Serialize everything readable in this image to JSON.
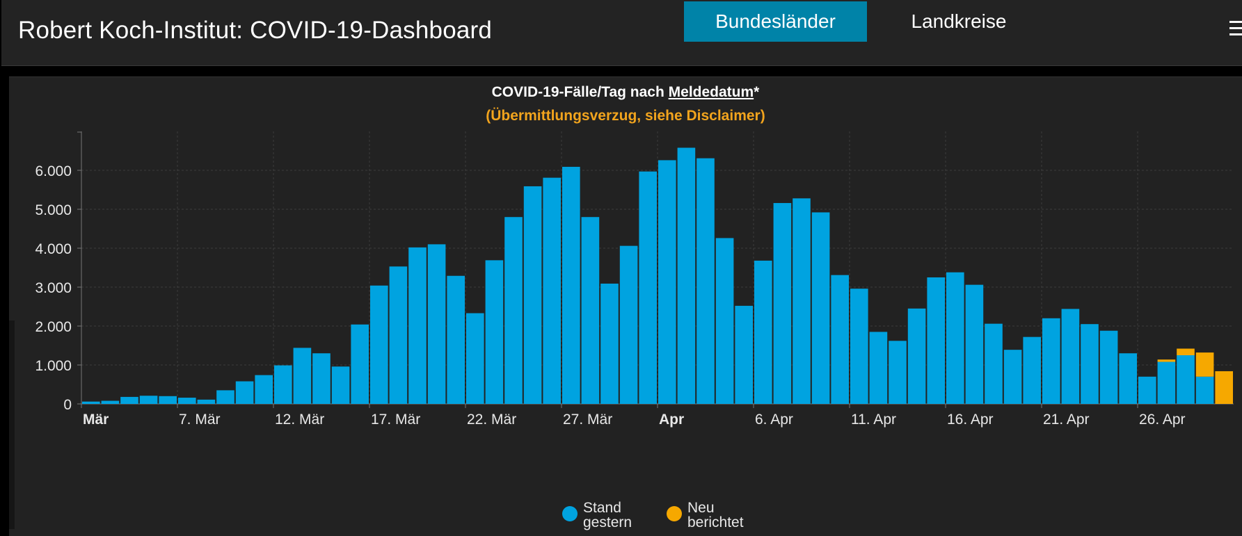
{
  "header": {
    "title": "Robert Koch-Institut: COVID-19-Dashboard",
    "tabs": [
      {
        "label": "Bundesländer",
        "active": true
      },
      {
        "label": "Landkreise",
        "active": false
      }
    ],
    "menu_icon": "hamburger-menu-icon"
  },
  "colors": {
    "stand": "#00a3e0",
    "neu": "#f6a800",
    "accent": "#0083a8",
    "subtitle": "#f2a41d"
  },
  "chart_data": {
    "type": "bar",
    "stacked": true,
    "title_pre": "COVID-19-Fälle/Tag nach ",
    "title_link": "Meldedatum",
    "title_post": "*",
    "subtitle": "(Übermittlungsverzug, siehe Disclaimer)",
    "ylim": [
      0,
      7000
    ],
    "yticks": [
      0,
      1000,
      2000,
      3000,
      4000,
      5000,
      6000
    ],
    "ytick_labels": [
      "0",
      "1.000",
      "2.000",
      "3.000",
      "4.000",
      "5.000",
      "6.000"
    ],
    "xtick_labels": [
      {
        "index": 0,
        "label": "Mär",
        "bold": true
      },
      {
        "index": 5,
        "label": "7. Mär",
        "bold": false
      },
      {
        "index": 10,
        "label": "12. Mär",
        "bold": false
      },
      {
        "index": 15,
        "label": "17. Mär",
        "bold": false
      },
      {
        "index": 20,
        "label": "22. Mär",
        "bold": false
      },
      {
        "index": 25,
        "label": "27. Mär",
        "bold": false
      },
      {
        "index": 30,
        "label": "Apr",
        "bold": true
      },
      {
        "index": 35,
        "label": "6. Apr",
        "bold": false
      },
      {
        "index": 40,
        "label": "11. Apr",
        "bold": false
      },
      {
        "index": 45,
        "label": "16. Apr",
        "bold": false
      },
      {
        "index": 50,
        "label": "21. Apr",
        "bold": false
      },
      {
        "index": 55,
        "label": "26. Apr",
        "bold": false
      }
    ],
    "categories": [
      "2020-03-02",
      "2020-03-03",
      "2020-03-04",
      "2020-03-05",
      "2020-03-06",
      "2020-03-07",
      "2020-03-08",
      "2020-03-09",
      "2020-03-10",
      "2020-03-11",
      "2020-03-12",
      "2020-03-13",
      "2020-03-14",
      "2020-03-15",
      "2020-03-16",
      "2020-03-17",
      "2020-03-18",
      "2020-03-19",
      "2020-03-20",
      "2020-03-21",
      "2020-03-22",
      "2020-03-23",
      "2020-03-24",
      "2020-03-25",
      "2020-03-26",
      "2020-03-27",
      "2020-03-28",
      "2020-03-29",
      "2020-03-30",
      "2020-03-31",
      "2020-04-01",
      "2020-04-02",
      "2020-04-03",
      "2020-04-04",
      "2020-04-05",
      "2020-04-06",
      "2020-04-07",
      "2020-04-08",
      "2020-04-09",
      "2020-04-10",
      "2020-04-11",
      "2020-04-12",
      "2020-04-13",
      "2020-04-14",
      "2020-04-15",
      "2020-04-16",
      "2020-04-17",
      "2020-04-18",
      "2020-04-19",
      "2020-04-20",
      "2020-04-21",
      "2020-04-22",
      "2020-04-23",
      "2020-04-24",
      "2020-04-25",
      "2020-04-26",
      "2020-04-27",
      "2020-04-28",
      "2020-04-29",
      "2020-04-30"
    ],
    "series": [
      {
        "name": "Stand gestern",
        "color_key": "stand",
        "values": [
          60,
          80,
          180,
          210,
          200,
          160,
          110,
          350,
          580,
          740,
          990,
          1440,
          1300,
          960,
          2040,
          3040,
          3530,
          4020,
          4100,
          3290,
          2330,
          3690,
          4800,
          5590,
          5810,
          6090,
          4800,
          3090,
          4060,
          5970,
          6260,
          6580,
          6310,
          4260,
          2520,
          3680,
          5160,
          5280,
          4920,
          3310,
          2960,
          1850,
          1620,
          2450,
          3250,
          3380,
          3060,
          2060,
          1390,
          1720,
          2200,
          2440,
          2050,
          1880,
          1300,
          700,
          1080,
          1250,
          700,
          0
        ]
      },
      {
        "name": "Neu berichtet",
        "color_key": "neu",
        "values": [
          0,
          0,
          0,
          0,
          0,
          0,
          0,
          0,
          0,
          0,
          0,
          0,
          0,
          0,
          0,
          0,
          0,
          0,
          0,
          0,
          0,
          0,
          0,
          0,
          0,
          0,
          0,
          0,
          0,
          0,
          0,
          0,
          0,
          0,
          0,
          0,
          0,
          0,
          0,
          0,
          0,
          0,
          0,
          0,
          0,
          0,
          0,
          0,
          0,
          0,
          0,
          0,
          0,
          0,
          0,
          0,
          60,
          170,
          620,
          840
        ]
      }
    ],
    "legend": [
      {
        "line1": "Stand",
        "line2": "gestern",
        "color_key": "stand"
      },
      {
        "line1": "Neu",
        "line2": "berichtet",
        "color_key": "neu"
      }
    ],
    "legend_position": "bottom-center",
    "grid": true
  }
}
